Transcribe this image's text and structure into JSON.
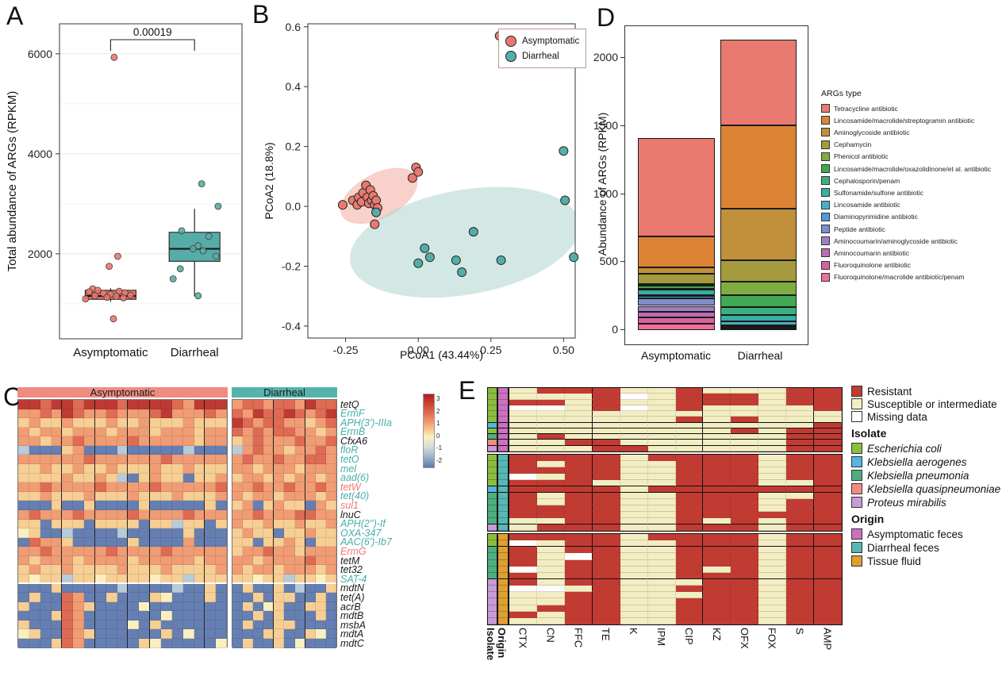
{
  "panel_labels": {
    "A": "A",
    "B": "B",
    "C": "C",
    "D": "D",
    "E": "E"
  },
  "chart_data": [
    {
      "id": "panelA",
      "type": "box",
      "ylabel": "Total abundance of ARGs (RPKM)",
      "yticks": [
        2000,
        4000,
        6000
      ],
      "ytick_labels": [
        "2000",
        "4000",
        "6000"
      ],
      "ylim": [
        300,
        6600
      ],
      "categories": [
        "Asymptomatic",
        "Diarrheal"
      ],
      "colors": [
        "#E9796E",
        "#56ADA8"
      ],
      "p_value": "0.00019",
      "boxes": [
        {
          "q1": 1090,
          "median": 1155,
          "q3": 1270,
          "lo": 1040,
          "hi": 1310
        },
        {
          "q1": 1850,
          "median": 2100,
          "q3": 2430,
          "lo": 1150,
          "hi": 2900
        }
      ],
      "points": [
        [
          [
            0.05,
            5930
          ],
          [
            0.1,
            1950
          ],
          [
            -0.02,
            1750
          ],
          [
            -0.25,
            1300
          ],
          [
            -0.18,
            1270
          ],
          [
            0.12,
            1250
          ],
          [
            -0.3,
            1240
          ],
          [
            0.2,
            1220
          ],
          [
            -0.1,
            1210
          ],
          [
            0.0,
            1190
          ],
          [
            0.28,
            1170
          ],
          [
            -0.22,
            1160
          ],
          [
            0.08,
            1150
          ],
          [
            -0.05,
            1130
          ],
          [
            0.18,
            1120
          ],
          [
            -0.35,
            1100
          ],
          [
            0.04,
            700
          ]
        ],
        [
          [
            0.1,
            3400
          ],
          [
            0.33,
            2950
          ],
          [
            -0.18,
            2460
          ],
          [
            0.2,
            2350
          ],
          [
            0.05,
            2160
          ],
          [
            -0.02,
            2100
          ],
          [
            0.12,
            2060
          ],
          [
            0.3,
            1950
          ],
          [
            -0.2,
            1700
          ],
          [
            -0.3,
            1500
          ],
          [
            0.05,
            1160
          ]
        ]
      ]
    },
    {
      "id": "panelB",
      "type": "scatter",
      "xlabel": "PCoA1 (43.44%)",
      "ylabel": "PCoA2 (18.8%)",
      "xticks": [
        -0.25,
        0,
        0.25,
        0.5
      ],
      "xtick_labels": [
        "-0.25",
        "0.00",
        "0.25",
        "0.50"
      ],
      "yticks": [
        -0.4,
        -0.2,
        0,
        0.2,
        0.4,
        0.6
      ],
      "ytick_labels": [
        "-0.4",
        "-0.2",
        "0.0",
        "0.2",
        "0.4",
        "0.6"
      ],
      "xlim": [
        -0.38,
        0.54
      ],
      "ylim": [
        -0.44,
        0.61
      ],
      "series": [
        {
          "name": "Asymptomatic",
          "color": "#E9796E",
          "points": [
            [
              -0.26,
              0.005
            ],
            [
              -0.225,
              0.02
            ],
            [
              -0.21,
              0.005
            ],
            [
              -0.205,
              0.03
            ],
            [
              -0.195,
              0.015
            ],
            [
              -0.19,
              0.045
            ],
            [
              -0.18,
              0.07
            ],
            [
              -0.175,
              0.03
            ],
            [
              -0.17,
              0.01
            ],
            [
              -0.165,
              0.055
            ],
            [
              -0.16,
              0.02
            ],
            [
              -0.155,
              0.035
            ],
            [
              -0.15,
              0.005
            ],
            [
              -0.145,
              0.02
            ],
            [
              -0.14,
              -0.005
            ],
            [
              -0.15,
              -0.06
            ],
            [
              -0.02,
              0.095
            ],
            [
              -0.008,
              0.13
            ],
            [
              0.0,
              0.115
            ],
            [
              0.28,
              0.57
            ]
          ]
        },
        {
          "name": "Diarrheal",
          "color": "#56ADA8",
          "points": [
            [
              -0.145,
              -0.02
            ],
            [
              0.0,
              -0.19
            ],
            [
              0.022,
              -0.14
            ],
            [
              0.04,
              -0.17
            ],
            [
              0.13,
              -0.18
            ],
            [
              0.15,
              -0.22
            ],
            [
              0.19,
              -0.085
            ],
            [
              0.285,
              -0.18
            ],
            [
              0.5,
              0.185
            ],
            [
              0.505,
              0.02
            ],
            [
              0.535,
              -0.17
            ]
          ]
        }
      ],
      "ellipses": [
        {
          "cx": -0.135,
          "cy": 0.035,
          "rx": 0.145,
          "ry": 0.075,
          "rot": -28,
          "color": "#F2AC9E"
        },
        {
          "cx": 0.16,
          "cy": -0.12,
          "rx": 0.4,
          "ry": 0.175,
          "rot": -10,
          "color": "#AED5CE"
        }
      ]
    },
    {
      "id": "panelC",
      "type": "heatmap",
      "col_groups": [
        {
          "label": "Asymptomatic",
          "n": 19,
          "color": "#EF8B80"
        },
        {
          "label": "Diarrheal",
          "n": 10,
          "color": "#56B3AC"
        }
      ],
      "palette": {
        "d": "#BE3A34",
        "r": "#DE6B54",
        "o": "#F09C74",
        "y": "#F7CE93",
        "c": "#FAEFBE",
        "l": "#B7CBDB",
        "b": "#667FB2",
        "w": "#FFFFFF"
      },
      "label_colors": {
        "black": "#1a1a1a",
        "teal": "#46AFA8",
        "salmon": "#F0796C"
      },
      "colorbar": {
        "ticks": [
          "3",
          "2",
          "1",
          "0",
          "-1",
          "-2"
        ]
      },
      "rows": [
        {
          "gene": "tetQ",
          "lc": "black",
          "cells": "ddrddrdddrddddrodddorrorrodrr"
        },
        {
          "gene": "ErmF",
          "lc": "teal",
          "cells": "oorodroorooordooororodrrdrord"
        },
        {
          "gene": "APH(3')-IIIa",
          "lc": "teal",
          "cells": "yoyyoyyyoyyoyyyoyyydrorrooyor"
        },
        {
          "gene": "ErmB",
          "lc": "teal",
          "cells": "oyooyoooyoooyoooyoorororrooyo"
        },
        {
          "gene": "CfxA6",
          "lc": "black",
          "cells": "ooyoorooooroooooyooyoroooroor"
        },
        {
          "gene": "floR",
          "lc": "teal",
          "cells": "lbbbyobbblbbbbblbbblorooyooro"
        },
        {
          "gene": "tetO",
          "lc": "teal",
          "cells": "ooooooroooooorooooooroorooRro"
        },
        {
          "gene": "mel",
          "lc": "teal",
          "cells": "yyoyyoyyoyyyoyyoyyyooyoooyooo"
        },
        {
          "gene": "aad(6)",
          "lc": "teal",
          "cells": "yyyyoyyoylbyoyybyyoyooyoyooyo"
        },
        {
          "gene": "tetW",
          "lc": "salmon",
          "cells": "oorooooroooorooooorooroorooro"
        },
        {
          "gene": "tet(40)",
          "lc": "teal",
          "cells": "yyoyyyoyyyoyyyoyyyooyooyoooyo"
        },
        {
          "gene": "sul1",
          "lc": "salmon",
          "cells": "bbbybbybbbbybbbbbybyobyoyyboy"
        },
        {
          "gene": "lnuC",
          "lc": "black",
          "cells": "orooorooooroooorooooorooorroo"
        },
        {
          "gene": "APH(2'')-If",
          "lc": "teal",
          "cells": "yybyyybyyyybyylyybyoyyoyyoyyo"
        },
        {
          "gene": "OXA-347",
          "lc": "teal",
          "cells": "cybblbbbblbbbbbybbbyoyybyyoyy"
        },
        {
          "gene": "AAC(6')-Ib7",
          "lc": "teal",
          "cells": "brooybbbbbybbbbobbbyybyyoybyy"
        },
        {
          "gene": "ErmG",
          "lc": "salmon",
          "cells": "oorooooorooooroooooyoorooyooo"
        },
        {
          "gene": "tetM",
          "lc": "black",
          "cells": "oyoooyooooyoooooyooooyooooroo"
        },
        {
          "gene": "tet32",
          "lc": "black",
          "cells": "yoyyoyyyyoyyyoyyyyooyooyoooyo"
        },
        {
          "gene": "SAT-4",
          "lc": "teal",
          "cells": "ycyylyycyyyycyylyyyyycyylyycy"
        },
        {
          "gene": "mdtN",
          "lc": "black",
          "cells": "bbbybbbbblbbbblbbybbybbyblbby"
        },
        {
          "gene": "tet(A)",
          "lc": "black",
          "cells": "bybbrobbybbbycbbbybbbybyybbyb"
        },
        {
          "gene": "acrB",
          "lc": "black",
          "cells": "ybbbroybbbbcbbbbbbbbybcybbyyb"
        },
        {
          "gene": "mdtB",
          "lc": "black",
          "cells": "bbbyrobbbbbbbcbbbbbbbybybbbyb"
        },
        {
          "gene": "msbA",
          "lc": "black",
          "cells": "ybbbrobbbbcbybbbbbbbybbyybbbb"
        },
        {
          "gene": "mdtA",
          "lc": "black",
          "cells": "cybbroybbbbbbybcbbbbbbyybbycb"
        },
        {
          "gene": "mdtC",
          "lc": "black",
          "cells": "bbbyrobbbbbycbbbbbcbybbybcbbb"
        }
      ]
    },
    {
      "id": "panelD",
      "type": "bar",
      "ylabel": "Abundance of ARGs (RPKM)",
      "yticks": [
        0,
        500,
        1000,
        1500,
        2000
      ],
      "ytick_labels": [
        "0",
        "500",
        "1000",
        "1500",
        "2000"
      ],
      "categories": [
        "Asymptomatic",
        "Diarrheal"
      ],
      "legend_title": "ARGs type",
      "series": [
        {
          "name": "Tetracycline antibiotic",
          "color": "#E97A6F",
          "values": [
            720,
            630
          ]
        },
        {
          "name": "Lincosamide/macrolide/streptogramin antibiotic",
          "color": "#DD8434",
          "values": [
            230,
            610
          ]
        },
        {
          "name": "Aminoglycoside antibiotic",
          "color": "#C0913A",
          "values": [
            45,
            380
          ]
        },
        {
          "name": "Cephamycin",
          "color": "#A59A3D",
          "values": [
            75,
            160
          ]
        },
        {
          "name": "Phenicol antibiotic",
          "color": "#7FAC41",
          "values": [
            12,
            95
          ]
        },
        {
          "name": "Lincosamide/macrolide/oxazolidinone/et al. antibiotic",
          "color": "#41A854",
          "values": [
            22,
            90
          ]
        },
        {
          "name": "Cephalosporin/penam",
          "color": "#3FAE7C",
          "values": [
            8,
            55
          ]
        },
        {
          "name": "Sulfonamide/sulfone antibiotic",
          "color": "#35B0A2",
          "values": [
            40,
            48
          ]
        },
        {
          "name": "Lincosamide antibiotic",
          "color": "#49AFC8",
          "values": [
            10,
            30
          ]
        },
        {
          "name": "Diaminopyrimidine antibiotic",
          "color": "#4E9BD3",
          "values": [
            12,
            10
          ]
        },
        {
          "name": "Peptide antibiotic",
          "color": "#7D8ECB",
          "values": [
            58,
            8
          ]
        },
        {
          "name": "Aminocoumarin/aminoglycoside antibiotic",
          "color": "#9F7FC2",
          "values": [
            45,
            5
          ]
        },
        {
          "name": "Aminocoumarin antibiotic",
          "color": "#BB6BB4",
          "values": [
            40,
            4
          ]
        },
        {
          "name": "Fluoroquinolone antibiotic",
          "color": "#D7619F",
          "values": [
            48,
            4
          ]
        },
        {
          "name": "Fluoroquinolone/macrolide antibiotic/penam",
          "color": "#EE6E9B",
          "values": [
            45,
            4
          ]
        }
      ]
    },
    {
      "id": "panelE",
      "type": "heatmap",
      "columns": [
        "CTX",
        "CN",
        "FFC",
        "TE",
        "K",
        "IPM",
        "CIP",
        "KZ",
        "OFX",
        "FOX",
        "S",
        "AMP"
      ],
      "cell_colors": {
        "R": "#C23B33",
        "S": "#F2EEC3",
        "M": "#FFFFFF"
      },
      "isolate_colors": {
        "ec": "#8BBD3F",
        "ka": "#53B5E0",
        "kp": "#4DAE7E",
        "kq": "#F28B82",
        "pm": "#C79BD6"
      },
      "origin_colors": {
        "af": "#CC70C0",
        "df": "#56B8B4",
        "tf": "#DFA032"
      },
      "axis_labels": {
        "isolate": "Isolate",
        "origin": "Origin"
      },
      "blocks": [
        {
          "origin": "af",
          "rows": [
            {
              "isolate": "ec",
              "cells": "SRRRSSRSSSRR"
            },
            {
              "isolate": "ec",
              "cells": "SSSRMSRRRSRR"
            },
            {
              "isolate": "ec",
              "cells": "RRSRSSRRRSRR"
            },
            {
              "isolate": "ec",
              "cells": "MMSRMSRSSSSR"
            },
            {
              "isolate": "ec",
              "cells": "SSSSSSSSSSSS"
            },
            {
              "isolate": "ec",
              "cells": "SSSSSSRSRSSS"
            },
            {
              "isolate": "ka",
              "cells": "SSSSSSSSSSSR"
            },
            {
              "isolate": "ec",
              "cells": "SSSSSSSSRSRR"
            },
            {
              "isolate": "kp",
              "cells": "SRSSSSSSSSRR"
            },
            {
              "isolate": "kq",
              "cells": "SSRRSSSSSSRR"
            },
            {
              "isolate": "pm",
              "cells": "SSSRRSSSSSRR"
            }
          ]
        },
        {
          "origin": "df",
          "rows": [
            {
              "isolate": "ec",
              "cells": "RRRRSRRRRSRR"
            },
            {
              "isolate": "ec",
              "cells": "RSRRSSRRRSRR"
            },
            {
              "isolate": "ec",
              "cells": "RRRRSSRRRSRR"
            },
            {
              "isolate": "ec",
              "cells": "MSRRSSRRRSRR"
            },
            {
              "isolate": "ec",
              "cells": "RRRSSSRRRSSR"
            },
            {
              "isolate": "ka",
              "cells": "RRRRSRRRRRRR"
            },
            {
              "isolate": "kp",
              "cells": "RSRRSSRRRSSR"
            },
            {
              "isolate": "kp",
              "cells": "RSRRSSRRRSRR"
            },
            {
              "isolate": "kp",
              "cells": "RRRRSSRRRSRR"
            },
            {
              "isolate": "kp",
              "cells": "RRRRSSRRRRRR"
            },
            {
              "isolate": "kp",
              "cells": "SSRRSSRSRSRR"
            },
            {
              "isolate": "pm",
              "cells": "SRRRSSRRRSRR"
            }
          ]
        },
        {
          "origin": "tf",
          "rows": [
            {
              "isolate": "ec",
              "cells": "RRRRSRRRRSRR"
            },
            {
              "isolate": "ec",
              "cells": "MSRRSSRRRSRR"
            },
            {
              "isolate": "kp",
              "cells": "RSRRSSRRRSRR"
            },
            {
              "isolate": "kp",
              "cells": "RSMRSSRRRSRR"
            },
            {
              "isolate": "kp",
              "cells": "RSRRSSRRRSRR"
            },
            {
              "isolate": "kp",
              "cells": "MSRRSSRSRSRR"
            },
            {
              "isolate": "kp",
              "cells": "RSRRSSRRRSRR"
            },
            {
              "isolate": "pm",
              "cells": "RSRRSSSRRSRR"
            },
            {
              "isolate": "pm",
              "cells": "MMSRSSRRRSRR"
            },
            {
              "isolate": "pm",
              "cells": "SSRRSSSRRSRR"
            },
            {
              "isolate": "pm",
              "cells": "SSRRSSRRRSRR"
            },
            {
              "isolate": "pm",
              "cells": "SRRRSSRRRSRR"
            },
            {
              "isolate": "pm",
              "cells": "RSRRSSRRRSRR"
            },
            {
              "isolate": "pm",
              "cells": "SSRRSSRRRSRR"
            }
          ]
        }
      ],
      "legend": {
        "status": [
          {
            "label": "Resistant",
            "key": "R"
          },
          {
            "label": "Susceptible or intermediate",
            "key": "S"
          },
          {
            "label": "Missing data",
            "key": "M"
          }
        ],
        "isolate_title": "Isolate",
        "isolates": [
          {
            "label": "Escherichia coli",
            "key": "ec"
          },
          {
            "label": "Klebsiella aerogenes",
            "key": "ka"
          },
          {
            "label": "Klebsiella pneumonia",
            "key": "kp"
          },
          {
            "label": "Klebsiella quasipneumoniae",
            "key": "kq"
          },
          {
            "label": "Proteus mirabilis",
            "key": "pm"
          }
        ],
        "origin_title": "Origin",
        "origins": [
          {
            "label": "Asymptomatic feces",
            "key": "af"
          },
          {
            "label": "Diarrheal feces",
            "key": "df"
          },
          {
            "label": "Tissue fluid",
            "key": "tf"
          }
        ]
      }
    }
  ]
}
